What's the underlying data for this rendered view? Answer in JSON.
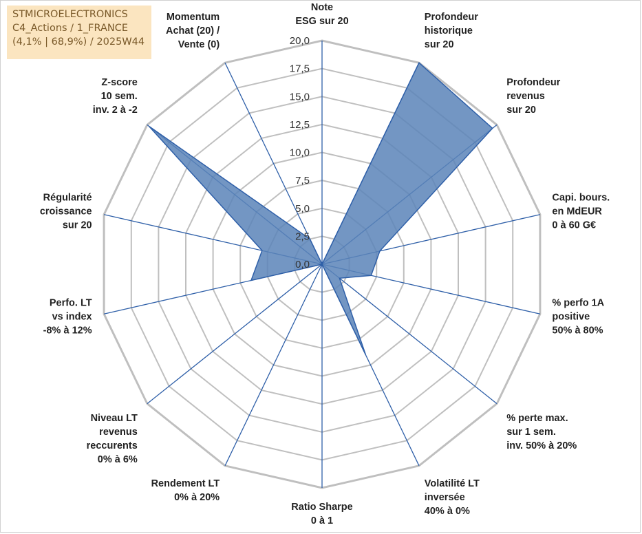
{
  "info_box": {
    "line1": "STMICROELECTRONICS",
    "line2": "C4_Actions / 1_FRANCE",
    "line3": "(4,1% | 68,9%) / 2025W44"
  },
  "colors": {
    "grid": "#bfbfbf",
    "spoke": "#2e5fa8",
    "fill": "#5b84b8",
    "fill_stroke": "#2e5fa8"
  },
  "chart_data": {
    "type": "radar",
    "rmin": 0,
    "rmax": 20,
    "grid": true,
    "ticks": [
      "0,0",
      "2,5",
      "5,0",
      "7,5",
      "10,0",
      "12,5",
      "15,0",
      "17,5",
      "20,0"
    ],
    "axes": [
      {
        "label": [
          "Note",
          "ESG sur 20"
        ],
        "value": 0
      },
      {
        "label": [
          "Profondeur",
          "historique",
          "sur 20"
        ],
        "value": 20
      },
      {
        "label": [
          "Profondeur",
          "revenus",
          "sur 20"
        ],
        "value": 19.5
      },
      {
        "label": [
          "Capi. bours.",
          "en MdEUR",
          "0 à 60 G€"
        ],
        "value": 5.3
      },
      {
        "label": [
          "% perfo 1A",
          "positive",
          "50% à 80%"
        ],
        "value": 4.5
      },
      {
        "label": [
          "% perte max.",
          "sur 1 sem.",
          "inv. 50% à 20%"
        ],
        "value": 2
      },
      {
        "label": [
          "Volatilité LT",
          "inversée",
          "40% à 0%"
        ],
        "value": 9
      },
      {
        "label": [
          "Ratio Sharpe",
          "0 à 1"
        ],
        "value": 0
      },
      {
        "label": [
          "Rendement LT",
          "0% à 20%"
        ],
        "value": 0
      },
      {
        "label": [
          "Niveau LT",
          "revenus",
          "reccurents",
          "0% à 6%"
        ],
        "value": 0
      },
      {
        "label": [
          "Perfo. LT",
          "vs index",
          "-8% à 12%"
        ],
        "value": 6.5
      },
      {
        "label": [
          "Régularité",
          "croissance",
          "sur 20"
        ],
        "value": 5.5
      },
      {
        "label": [
          "Z-score",
          "10 sem.",
          "inv. 2 à -2"
        ],
        "value": 0
      },
      {
        "label": [
          "Z-score",
          "10 sem.",
          "inv. 2 à -2"
        ],
        "value": 19.8
      },
      {
        "label": [
          "Momentum",
          "Achat (20) /",
          "Vente (0)"
        ],
        "value": 2.5
      }
    ]
  }
}
